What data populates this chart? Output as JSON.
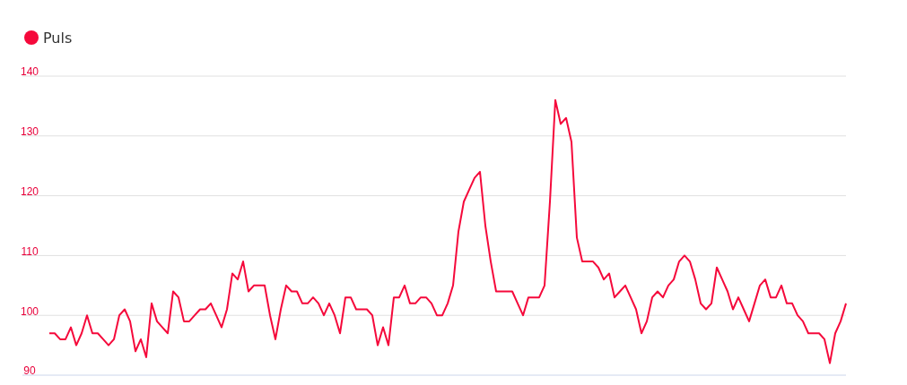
{
  "chart_data": {
    "type": "line",
    "categories": [
      null,
      null,
      null,
      null,
      null,
      null,
      null,
      null,
      null,
      null,
      null,
      null,
      null,
      null,
      null,
      null,
      null,
      null,
      null,
      null,
      null,
      null,
      null,
      null,
      null,
      null,
      null,
      null,
      null,
      null,
      null,
      null,
      null,
      null,
      null,
      null,
      null,
      null,
      null,
      null,
      null,
      null,
      null,
      null,
      null,
      null,
      null,
      null,
      null,
      null,
      null,
      null,
      null,
      null,
      null,
      null,
      null,
      null,
      null,
      null,
      null,
      null,
      null,
      null,
      null,
      null,
      null,
      null,
      null,
      null,
      null,
      null,
      null,
      null,
      null,
      null,
      null,
      null,
      null,
      null,
      null,
      null,
      null,
      null,
      null,
      null,
      null,
      null,
      null,
      null,
      null,
      null,
      null,
      null,
      null,
      null,
      null,
      null,
      null,
      null,
      null,
      null,
      null,
      null,
      null,
      null,
      null,
      null,
      null,
      null,
      null,
      null,
      null,
      null,
      null,
      null,
      null,
      null,
      null,
      null,
      null,
      null,
      null,
      null,
      null,
      null,
      null,
      null,
      null,
      null,
      null,
      null,
      null,
      null,
      null,
      null,
      null,
      null,
      null,
      null,
      null,
      null,
      null,
      null,
      null,
      null,
      null,
      null,
      null
    ],
    "series": [
      {
        "name": "Puls",
        "color": "#f5093b",
        "values": [
          97,
          97,
          96,
          96,
          98,
          95,
          97,
          100,
          97,
          97,
          96,
          95,
          96,
          100,
          101,
          99,
          94,
          96,
          93,
          102,
          99,
          98,
          97,
          104,
          103,
          99,
          99,
          100,
          101,
          101,
          102,
          100,
          98,
          101,
          107,
          106,
          109,
          104,
          105,
          105,
          105,
          100,
          96,
          101,
          105,
          104,
          104,
          102,
          102,
          103,
          102,
          100,
          102,
          100,
          97,
          103,
          103,
          101,
          101,
          101,
          100,
          95,
          98,
          95,
          103,
          103,
          105,
          102,
          102,
          103,
          103,
          102,
          100,
          100,
          102,
          105,
          114,
          119,
          121,
          123,
          124,
          115,
          109,
          104,
          104,
          104,
          104,
          102,
          100,
          103,
          103,
          103,
          105,
          119,
          136,
          132,
          133,
          129,
          113,
          109,
          109,
          109,
          108,
          106,
          107,
          103,
          104,
          105,
          103,
          101,
          97,
          99,
          103,
          104,
          103,
          105,
          106,
          109,
          110,
          109,
          106,
          102,
          101,
          102,
          108,
          106,
          104,
          101,
          103,
          101,
          99,
          102,
          105,
          106,
          103,
          103,
          105,
          102,
          102,
          100,
          99,
          97,
          97,
          97,
          96,
          92,
          97,
          99,
          102
        ]
      }
    ],
    "ylim": [
      90,
      140
    ],
    "yticks": [
      90,
      100,
      110,
      120,
      130,
      140
    ],
    "grid": "y",
    "legend": "top left"
  }
}
